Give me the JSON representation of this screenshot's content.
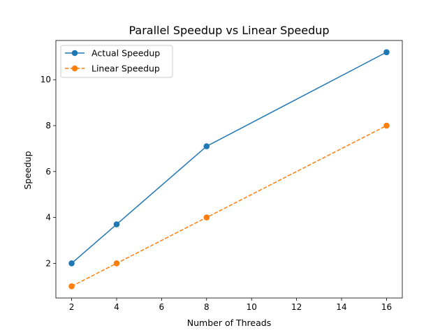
{
  "chart_data": {
    "type": "line",
    "title": "Parallel Speedup vs Linear Speedup",
    "xlabel": "Number of Threads",
    "ylabel": "Speedup",
    "xlim": [
      1.3,
      16.7
    ],
    "ylim": [
      0.49,
      11.71
    ],
    "xticks": [
      2,
      4,
      6,
      8,
      10,
      12,
      14,
      16
    ],
    "yticks": [
      2,
      4,
      6,
      8,
      10
    ],
    "grid": false,
    "legend_position": "upper-left",
    "series": [
      {
        "name": "Actual Speedup",
        "x": [
          2,
          4,
          8,
          16
        ],
        "y": [
          2.0,
          3.7,
          7.1,
          11.2
        ],
        "color": "#1f77b4",
        "line_style": "solid",
        "marker": "circle"
      },
      {
        "name": "Linear Speedup",
        "x": [
          2,
          4,
          8,
          16
        ],
        "y": [
          1,
          2,
          4,
          8
        ],
        "color": "#ff7f0e",
        "line_style": "dashed",
        "marker": "circle"
      }
    ]
  }
}
